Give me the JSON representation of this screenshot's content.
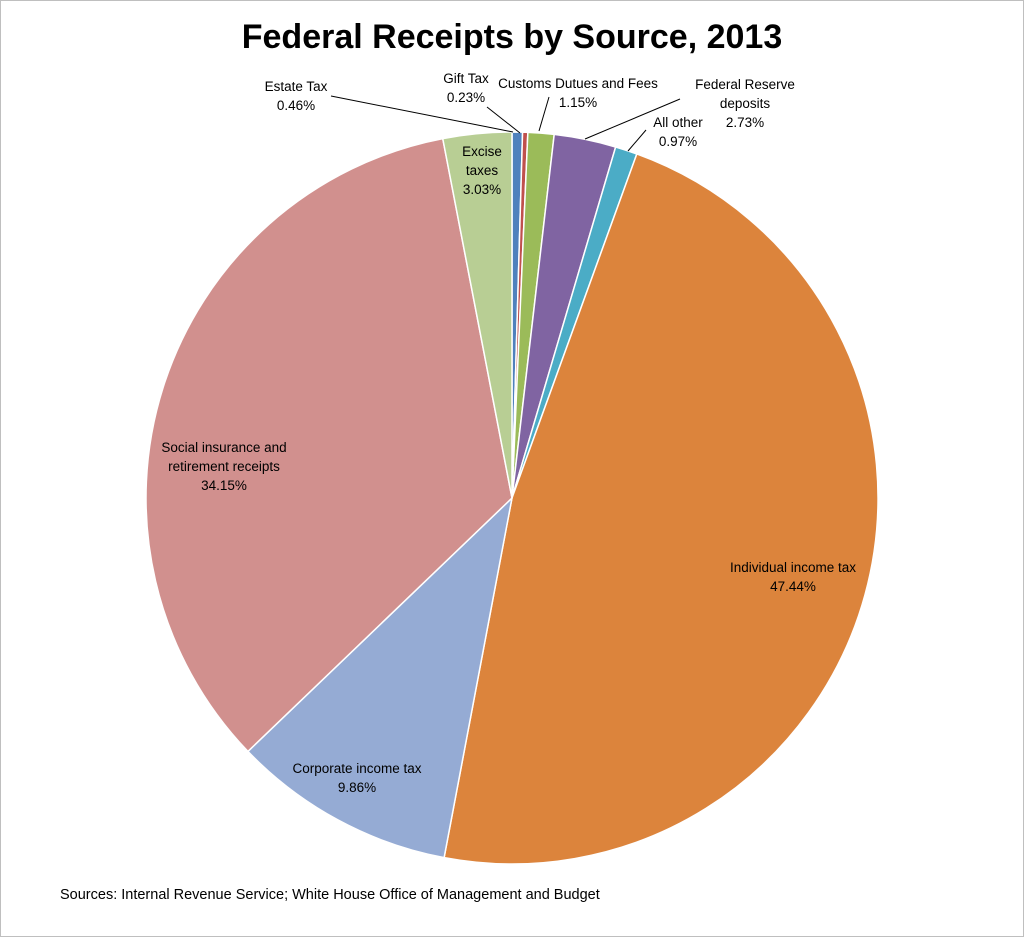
{
  "chart_data": {
    "type": "pie",
    "title": "Federal Receipts by Source, 2013",
    "slices": [
      {
        "name": "Estate Tax",
        "label_lines": [
          "Estate Tax"
        ],
        "value": 0.46,
        "value_label": "0.46%",
        "color": "#4f81bd"
      },
      {
        "name": "Gift Tax",
        "label_lines": [
          "Gift Tax"
        ],
        "value": 0.23,
        "value_label": "0.23%",
        "color": "#c0504d"
      },
      {
        "name": "Customs Dutues and Fees",
        "label_lines": [
          "Customs Dutues and Fees"
        ],
        "value": 1.15,
        "value_label": "1.15%",
        "color": "#9bbb59"
      },
      {
        "name": "Federal Reserve deposits",
        "label_lines": [
          "Federal Reserve",
          "deposits"
        ],
        "value": 2.73,
        "value_label": "2.73%",
        "color": "#8064a2"
      },
      {
        "name": "All other",
        "label_lines": [
          "All other"
        ],
        "value": 0.97,
        "value_label": "0.97%",
        "color": "#4bacc6"
      },
      {
        "name": "Individual income tax",
        "label_lines": [
          "Individual income tax"
        ],
        "value": 47.44,
        "value_label": "47.44%",
        "color": "#dc843c"
      },
      {
        "name": "Corporate income tax",
        "label_lines": [
          "Corporate income tax"
        ],
        "value": 9.86,
        "value_label": "9.86%",
        "color": "#95abd4"
      },
      {
        "name": "Social insurance and retirement receipts",
        "label_lines": [
          "Social insurance and",
          "retirement receipts"
        ],
        "value": 34.15,
        "value_label": "34.15%",
        "color": "#d1908e"
      },
      {
        "name": "Excise taxes",
        "label_lines": [
          "Excise",
          "taxes"
        ],
        "value": 3.03,
        "value_label": "3.03%",
        "color": "#b8ce94"
      }
    ],
    "start": "12 o'clock",
    "direction": "clockwise",
    "legend": "none"
  },
  "footer": {
    "sources": "Sources: Internal Revenue Service; White House Office of Management and Budget"
  }
}
